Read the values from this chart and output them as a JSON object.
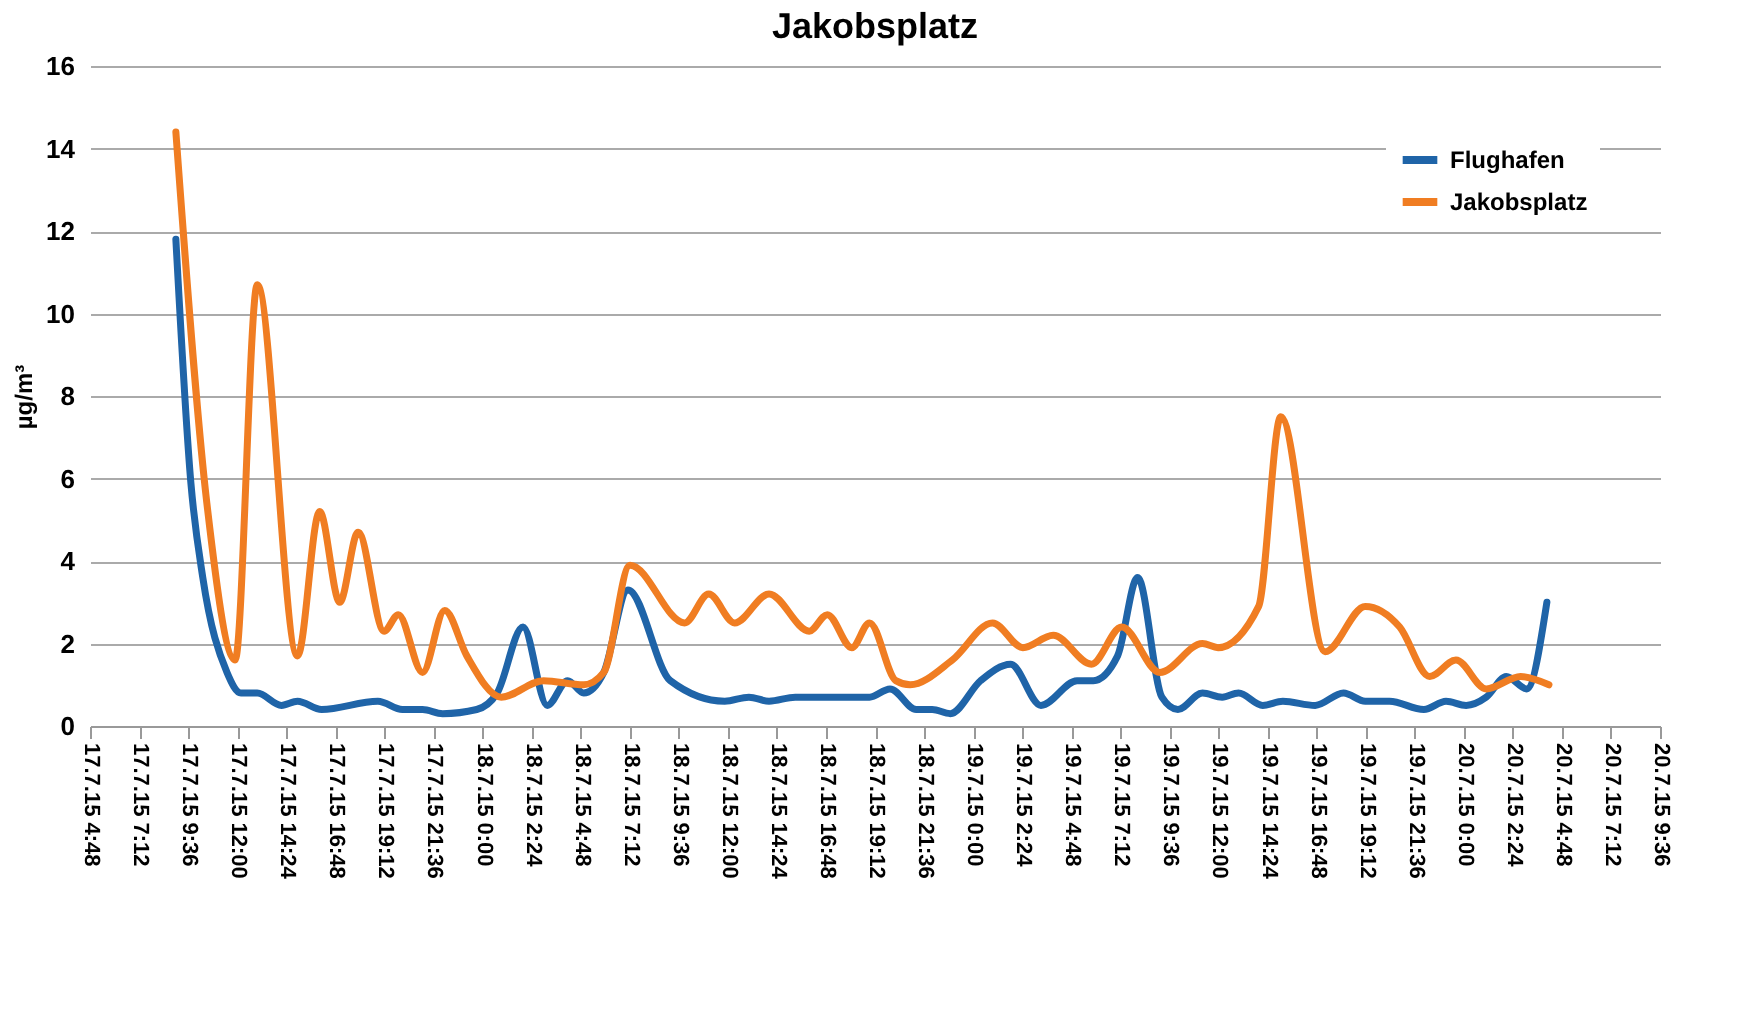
{
  "chart_data": {
    "type": "line",
    "title": "Jakobsplatz",
    "ylabel": "µg/m³",
    "ylim": [
      0,
      16
    ],
    "yticks": [
      0,
      2,
      4,
      6,
      8,
      10,
      12,
      14,
      16
    ],
    "xlim": [
      "--07-17T04:48",
      "--07-20T09:36"
    ],
    "xticks": [
      {
        "value": "--07-17T04:48",
        "label": "17.7.15 4:48"
      },
      {
        "value": "--07-17T07:12",
        "label": "17.7.15 7:12"
      },
      {
        "value": "--07-17T09:36",
        "label": "17.7.15 9:36"
      },
      {
        "value": "--07-17T12:00",
        "label": "17.7.15 12:00"
      },
      {
        "value": "--07-17T14:24",
        "label": "17.7.15 14:24"
      },
      {
        "value": "--07-17T16:48",
        "label": "17.7.15 16:48"
      },
      {
        "value": "--07-17T19:12",
        "label": "17.7.15 19:12"
      },
      {
        "value": "--07-17T21:36",
        "label": "17.7.15 21:36"
      },
      {
        "value": "--07-18T00:00",
        "label": "18.7.15 0:00"
      },
      {
        "value": "--07-18T02:24",
        "label": "18.7.15 2:24"
      },
      {
        "value": "--07-18T04:48",
        "label": "18.7.15 4:48"
      },
      {
        "value": "--07-18T07:12",
        "label": "18.7.15 7:12"
      },
      {
        "value": "--07-18T09:36",
        "label": "18.7.15 9:36"
      },
      {
        "value": "--07-18T12:00",
        "label": "18.7.15 12:00"
      },
      {
        "value": "--07-18T14:24",
        "label": "18.7.15 14:24"
      },
      {
        "value": "--07-18T16:48",
        "label": "18.7.15 16:48"
      },
      {
        "value": "--07-18T19:12",
        "label": "18.7.15 19:12"
      },
      {
        "value": "--07-18T21:36",
        "label": "18.7.15 21:36"
      },
      {
        "value": "--07-19T00:00",
        "label": "19.7.15 0:00"
      },
      {
        "value": "--07-19T02:24",
        "label": "19.7.15 2:24"
      },
      {
        "value": "--07-19T04:48",
        "label": "19.7.15 4:48"
      },
      {
        "value": "--07-19T07:12",
        "label": "19.7.15 7:12"
      },
      {
        "value": "--07-19T09:36",
        "label": "19.7.15 9:36"
      },
      {
        "value": "--07-19T12:00",
        "label": "19.7.15 12:00"
      },
      {
        "value": "--07-19T14:24",
        "label": "19.7.15 14:24"
      },
      {
        "value": "--07-19T16:48",
        "label": "19.7.15 16:48"
      },
      {
        "value": "--07-19T19:12",
        "label": "19.7.15 19:12"
      },
      {
        "value": "--07-19T21:36",
        "label": "19.7.15 21:36"
      },
      {
        "value": "--07-20T00:00",
        "label": "20.7.15 0:00"
      },
      {
        "value": "--07-20T02:24",
        "label": "20.7.15 2:24"
      },
      {
        "value": "--07-20T04:48",
        "label": "20.7.15 4:48"
      },
      {
        "value": "--07-20T07:12",
        "label": "20.7.15 7:12"
      },
      {
        "value": "--07-20T09:36",
        "label": "20.7.15 9:36"
      }
    ],
    "grid": "y",
    "legend": "top right",
    "marker": "none",
    "line_style": "solid",
    "series": [
      {
        "name": "Flughafen",
        "color": "#1f64a8",
        "x": [
          "--07-17T09:00",
          "--07-17T09:44",
          "--07-17T10:19",
          "--07-17T11:30",
          "--07-17T12:11",
          "--07-17T12:59",
          "--07-17T14:10",
          "--07-17T14:57",
          "--07-17T16:08",
          "--07-17T18:53",
          "--07-17T20:05",
          "--07-17T21:04",
          "--07-17T22:03",
          "--07-17T23:43",
          "--07-18T00:43",
          "--07-18T01:59",
          "--07-18T03:10",
          "--07-18T04:10",
          "--07-18T04:57",
          "--07-18T05:56",
          "--07-18T07:07",
          "--07-18T09:11",
          "--07-18T11:51",
          "--07-18T13:02",
          "--07-18T14:01",
          "--07-18T15:18",
          "--07-18T18:56",
          "--07-18T19:56",
          "--07-18T21:13",
          "--07-18T22:00",
          "--07-18T22:53",
          "--07-19T00:22",
          "--07-19T01:50",
          "--07-19T03:19",
          "--07-19T05:05",
          "--07-19T05:53",
          "--07-19T07:04",
          "--07-19T08:03",
          "--07-19T09:14",
          "--07-19T10:01",
          "--07-19T11:13",
          "--07-19T12:11",
          "--07-19T12:59",
          "--07-19T14:10",
          "--07-19T15:09",
          "--07-19T16:44",
          "--07-19T18:07",
          "--07-19T19:11",
          "--07-19T20:22",
          "--07-19T22:03",
          "--07-19T23:08",
          "--07-20T00:07",
          "--07-20T01:06",
          "--07-20T02:05",
          "--07-20T03:05",
          "--07-20T04:04"
        ],
        "values": [
          11.8,
          5.9,
          3.6,
          1.3,
          0.8,
          0.8,
          0.5,
          0.6,
          0.4,
          0.6,
          0.4,
          0.4,
          0.3,
          0.4,
          0.8,
          2.4,
          0.5,
          1.1,
          0.8,
          1.3,
          3.3,
          1.1,
          0.6,
          0.7,
          0.6,
          0.7,
          0.7,
          0.9,
          0.4,
          0.4,
          0.3,
          1.1,
          1.5,
          0.5,
          1.1,
          1.1,
          1.7,
          3.6,
          0.7,
          0.4,
          0.8,
          0.7,
          0.8,
          0.5,
          0.6,
          0.5,
          0.8,
          0.6,
          0.6,
          0.4,
          0.6,
          0.5,
          0.7,
          1.2,
          0.9,
          3.0
        ]
      },
      {
        "name": "Jakobsplatz",
        "color": "#f07d22",
        "x": [
          "--07-17T09:00",
          "--07-17T10:31",
          "--07-17T11:54",
          "--07-17T12:59",
          "--07-17T14:57",
          "--07-17T16:02",
          "--07-17T17:01",
          "--07-17T17:55",
          "--07-17T19:11",
          "--07-17T19:53",
          "--07-17T21:04",
          "--07-17T22:09",
          "--07-17T23:14",
          "--07-18T00:55",
          "--07-18T02:59",
          "--07-18T04:57",
          "--07-18T05:56",
          "--07-18T07:13",
          "--07-18T09:53",
          "--07-18T11:04",
          "--07-18T12:20",
          "--07-18T14:01",
          "--07-18T15:59",
          "--07-18T16:52",
          "--07-18T18:04",
          "--07-18T18:56",
          "--07-18T20:13",
          "--07-18T20:55",
          "--07-18T22:59",
          "--07-19T00:57",
          "--07-19T02:26",
          "--07-19T03:55",
          "--07-19T05:47",
          "--07-19T07:16",
          "--07-19T09:08",
          "--07-19T11:13",
          "--07-19T11:59",
          "--07-19T13:58",
          "--07-19T15:03",
          "--07-19T17:13",
          "--07-19T19:11",
          "--07-19T20:52",
          "--07-19T22:20",
          "--07-19T23:37",
          "--07-20T01:06",
          "--07-20T02:47",
          "--07-20T04:10"
        ],
        "values": [
          14.4,
          5.4,
          1.6,
          10.7,
          1.7,
          5.2,
          3.0,
          4.7,
          2.3,
          2.7,
          1.3,
          2.8,
          1.7,
          0.7,
          1.1,
          1.0,
          1.3,
          3.9,
          2.5,
          3.2,
          2.5,
          3.2,
          2.3,
          2.7,
          1.9,
          2.5,
          1.1,
          1.0,
          1.6,
          2.5,
          1.9,
          2.2,
          1.5,
          2.4,
          1.3,
          2.0,
          1.9,
          2.9,
          7.5,
          1.8,
          2.9,
          2.4,
          1.2,
          1.6,
          0.9,
          1.2,
          1.0
        ]
      }
    ]
  }
}
